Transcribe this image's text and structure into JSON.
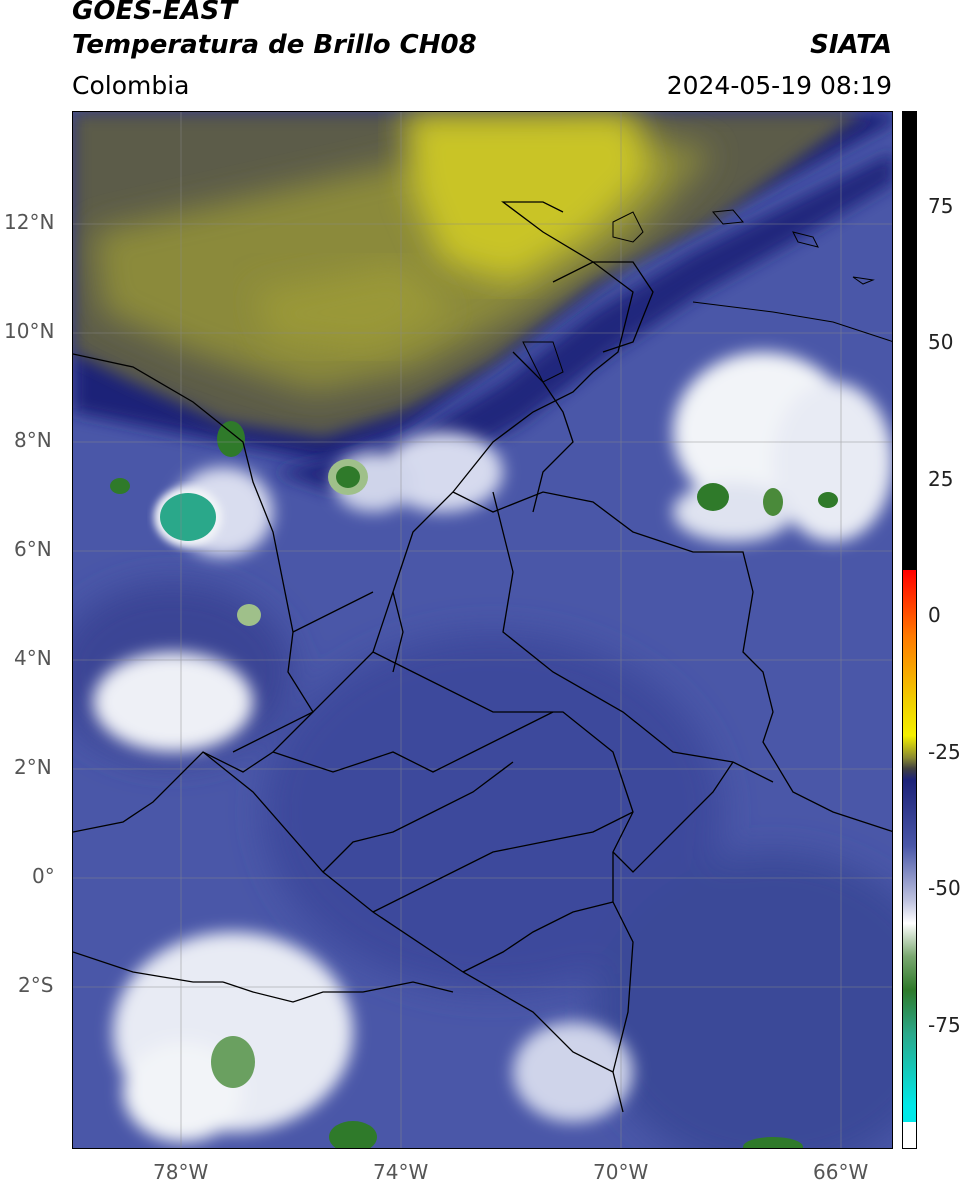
{
  "header": {
    "title_line1": "GOES-EAST",
    "title_line2": "Temperatura de Brillo CH08",
    "brand": "SIATA",
    "region": "Colombia",
    "timestamp": "2024-05-19 08:19"
  },
  "map": {
    "lat_labels": [
      "12°N",
      "10°N",
      "8°N",
      "6°N",
      "4°N",
      "2°N",
      "0°",
      "2°S"
    ],
    "lon_labels": [
      "78°W",
      "74°W",
      "70°W",
      "66°W"
    ],
    "palette": {
      "cold_cloud": "#2f7a2a",
      "deep_cold": "#2aa88a",
      "cloud_white": "#f2f4f8",
      "moist_blue": "#4a57a8",
      "deep_blue": "#1c2278",
      "dry_yellow": "#c9c425",
      "dry_olive": "#5a5a4a",
      "border": "#000000"
    }
  },
  "colorbar": {
    "ticks": [
      "75",
      "50",
      "25",
      "0",
      "-25",
      "-50",
      "-75"
    ]
  }
}
